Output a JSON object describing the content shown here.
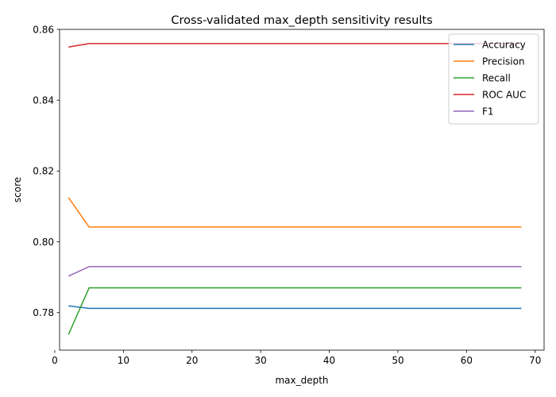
{
  "chart_data": {
    "type": "line",
    "title": "Cross-validated max_depth sensitivity results",
    "xlabel": "max_depth",
    "ylabel": "score",
    "xlim": [
      0.7,
      71.3
    ],
    "ylim": [
      0.7694,
      0.86
    ],
    "xticks": [
      0,
      10,
      20,
      30,
      40,
      50,
      60,
      70
    ],
    "yticks": [
      0.78,
      0.8,
      0.82,
      0.84,
      0.86
    ],
    "ytick_labels": [
      "0.78",
      "0.80",
      "0.82",
      "0.84",
      "0.86"
    ],
    "legend_position": "top-right",
    "grid": false,
    "x": [
      2,
      5,
      10,
      20,
      30,
      40,
      50,
      60,
      68
    ],
    "series": [
      {
        "name": "Accuracy",
        "color": "#1f77b4",
        "values": [
          0.7819,
          0.7812,
          0.7812,
          0.7812,
          0.7812,
          0.7812,
          0.7812,
          0.7812,
          0.7812
        ]
      },
      {
        "name": "Precision",
        "color": "#ff7f0e",
        "values": [
          0.8125,
          0.8042,
          0.8042,
          0.8042,
          0.8042,
          0.8042,
          0.8042,
          0.8042,
          0.8042
        ]
      },
      {
        "name": "Recall",
        "color": "#2ca02c",
        "values": [
          0.7738,
          0.787,
          0.787,
          0.787,
          0.787,
          0.787,
          0.787,
          0.787,
          0.787
        ]
      },
      {
        "name": "ROC AUC",
        "color": "#d62728",
        "values": [
          0.855,
          0.856,
          0.856,
          0.856,
          0.856,
          0.856,
          0.856,
          0.856,
          0.856
        ]
      },
      {
        "name": "F1",
        "color": "#9467bd",
        "values": [
          0.7903,
          0.793,
          0.793,
          0.793,
          0.793,
          0.793,
          0.793,
          0.793,
          0.793
        ]
      }
    ]
  }
}
